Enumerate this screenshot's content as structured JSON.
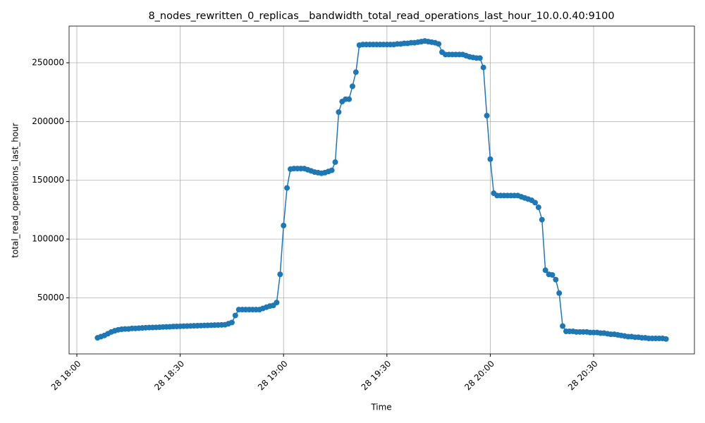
{
  "chart_data": {
    "type": "line",
    "title": "8_nodes_rewritten_0_replicas__bandwidth_total_read_operations_last_hour_10.0.0.40:9100",
    "xlabel": "Time",
    "ylabel": "total_read_operations_last_hour",
    "color": "#1f77b4",
    "grid": true,
    "markers": true,
    "x": [
      "28 18:06",
      "28 18:07",
      "28 18:08",
      "28 18:09",
      "28 18:10",
      "28 18:11",
      "28 18:12",
      "28 18:13",
      "28 18:14",
      "28 18:15",
      "28 18:16",
      "28 18:17",
      "28 18:18",
      "28 18:19",
      "28 18:20",
      "28 18:21",
      "28 18:22",
      "28 18:23",
      "28 18:24",
      "28 18:25",
      "28 18:26",
      "28 18:27",
      "28 18:28",
      "28 18:29",
      "28 18:30",
      "28 18:31",
      "28 18:32",
      "28 18:33",
      "28 18:34",
      "28 18:35",
      "28 18:36",
      "28 18:37",
      "28 18:38",
      "28 18:39",
      "28 18:40",
      "28 18:41",
      "28 18:42",
      "28 18:43",
      "28 18:44",
      "28 18:45",
      "28 18:46",
      "28 18:47",
      "28 18:48",
      "28 18:49",
      "28 18:50",
      "28 18:51",
      "28 18:52",
      "28 18:53",
      "28 18:54",
      "28 18:55",
      "28 18:56",
      "28 18:57",
      "28 18:58",
      "28 18:59",
      "28 19:00",
      "28 19:01",
      "28 19:02",
      "28 19:03",
      "28 19:04",
      "28 19:05",
      "28 19:06",
      "28 19:07",
      "28 19:08",
      "28 19:09",
      "28 19:10",
      "28 19:11",
      "28 19:12",
      "28 19:13",
      "28 19:14",
      "28 19:15",
      "28 19:16",
      "28 19:17",
      "28 19:18",
      "28 19:19",
      "28 19:20",
      "28 19:21",
      "28 19:22",
      "28 19:23",
      "28 19:24",
      "28 19:25",
      "28 19:26",
      "28 19:27",
      "28 19:28",
      "28 19:29",
      "28 19:30",
      "28 19:31",
      "28 19:32",
      "28 19:33",
      "28 19:34",
      "28 19:35",
      "28 19:36",
      "28 19:37",
      "28 19:38",
      "28 19:39",
      "28 19:40",
      "28 19:41",
      "28 19:42",
      "28 19:43",
      "28 19:44",
      "28 19:45",
      "28 19:46",
      "28 19:47",
      "28 19:48",
      "28 19:49",
      "28 19:50",
      "28 19:51",
      "28 19:52",
      "28 19:53",
      "28 19:54",
      "28 19:55",
      "28 19:56",
      "28 19:57",
      "28 19:58",
      "28 19:59",
      "28 20:00",
      "28 20:01",
      "28 20:02",
      "28 20:03",
      "28 20:04",
      "28 20:05",
      "28 20:06",
      "28 20:07",
      "28 20:08",
      "28 20:09",
      "28 20:10",
      "28 20:11",
      "28 20:12",
      "28 20:13",
      "28 20:14",
      "28 20:15",
      "28 20:16",
      "28 20:17",
      "28 20:18",
      "28 20:19",
      "28 20:20",
      "28 20:21",
      "28 20:22",
      "28 20:23",
      "28 20:24",
      "28 20:25",
      "28 20:26",
      "28 20:27",
      "28 20:28",
      "28 20:29",
      "28 20:30",
      "28 20:31",
      "28 20:32",
      "28 20:33",
      "28 20:34",
      "28 20:35",
      "28 20:36",
      "28 20:37",
      "28 20:38",
      "28 20:39",
      "28 20:40",
      "28 20:41",
      "28 20:42",
      "28 20:43",
      "28 20:44",
      "28 20:45",
      "28 20:46",
      "28 20:47",
      "28 20:48",
      "28 20:49",
      "28 20:50",
      "28 20:51"
    ],
    "values": [
      16000,
      17000,
      18000,
      19500,
      21000,
      22000,
      22800,
      23300,
      23500,
      23500,
      24000,
      24000,
      24200,
      24400,
      24600,
      24700,
      24800,
      24900,
      25000,
      25200,
      25300,
      25400,
      25600,
      25700,
      25800,
      25900,
      26000,
      26100,
      26200,
      26300,
      26400,
      26500,
      26600,
      26700,
      26800,
      26900,
      27000,
      27100,
      28000,
      29000,
      35000,
      40000,
      40000,
      40000,
      40000,
      40000,
      40000,
      40000,
      41000,
      42000,
      43000,
      43500,
      46000,
      70000,
      111500,
      143500,
      159500,
      160000,
      160000,
      160000,
      160000,
      159000,
      158000,
      157000,
      156500,
      156000,
      156500,
      157500,
      158500,
      165500,
      208000,
      217000,
      219000,
      219000,
      230000,
      242000,
      265000,
      265500,
      265500,
      265500,
      265500,
      265500,
      265500,
      265500,
      265500,
      265500,
      265500,
      266000,
      266000,
      266500,
      266500,
      267000,
      267000,
      267500,
      268000,
      268500,
      268000,
      267500,
      267000,
      266000,
      259000,
      257000,
      257000,
      257000,
      257000,
      257000,
      257000,
      256000,
      255000,
      254500,
      254000,
      254000,
      246000,
      205000,
      168000,
      139000,
      137000,
      137000,
      137000,
      137000,
      137000,
      137000,
      137000,
      136000,
      135000,
      134000,
      133000,
      131000,
      127000,
      116500,
      73500,
      70000,
      69500,
      65500,
      54000,
      26000,
      21500,
      21500,
      21500,
      21000,
      21000,
      21000,
      21000,
      20500,
      20500,
      20500,
      20000,
      20000,
      19500,
      19000,
      19000,
      18500,
      18000,
      17500,
      17000,
      17000,
      16500,
      16500,
      16000,
      16000,
      15500,
      15500,
      15500,
      15500,
      15500,
      15000
    ],
    "xticks": [
      "28 18:00",
      "28 18:30",
      "28 19:00",
      "28 19:30",
      "28 20:00",
      "28 20:30"
    ],
    "ylim": [
      2300,
      281200
    ],
    "yticks": [
      50000,
      100000,
      150000,
      200000,
      250000
    ]
  }
}
